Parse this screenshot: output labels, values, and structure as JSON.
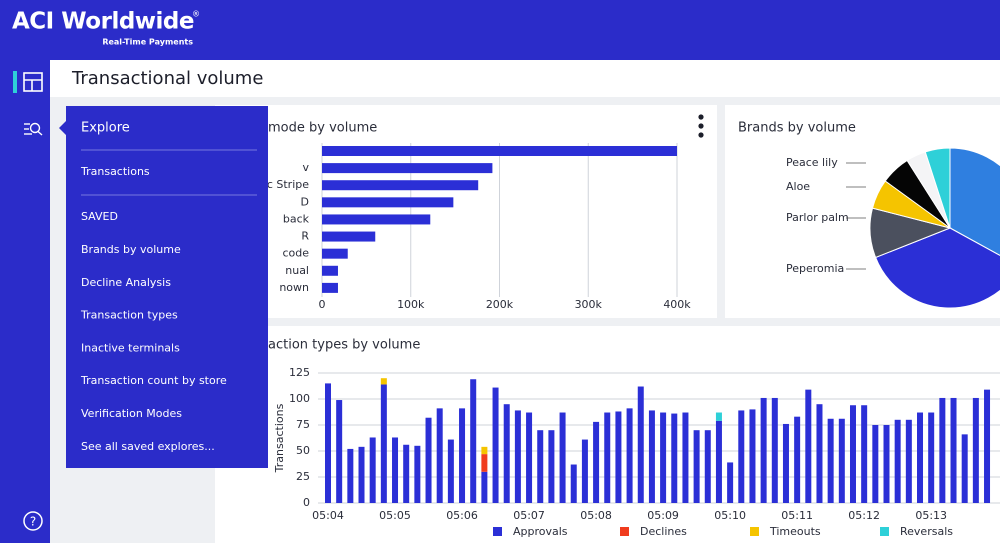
{
  "header": {
    "logo": "ACI Worldwide",
    "logo_mark": "®",
    "tagline": "Real-Time Payments"
  },
  "page_title": "Transactional volume",
  "sidebar": {
    "help": "?"
  },
  "menu": {
    "title": "Explore",
    "items": [
      "Transactions"
    ],
    "section": "SAVED",
    "saved": [
      "Brands by volume",
      "Decline Analysis",
      "Transaction types",
      "Inactive terminals",
      "Transaction count by store",
      "Verification Modes"
    ],
    "see_all": "See all saved explores..."
  },
  "charts": [
    {
      "type": "hbar",
      "title": "mode by volume",
      "categories": [
        null,
        "v",
        "c Stripe",
        "D",
        "back",
        "R",
        "code",
        "nual",
        "nown"
      ],
      "values": [
        400000,
        192000,
        176000,
        148000,
        122000,
        60000,
        29000,
        18000,
        18000
      ],
      "color": "#2b2fd6",
      "xlim": [
        0,
        400000
      ],
      "xticks": [
        0,
        {
          "value": 100000,
          "label": "100k"
        },
        {
          "value": 200000,
          "label": "200k"
        },
        {
          "value": 300000,
          "label": "300k"
        },
        {
          "value": 400000,
          "label": "400k"
        }
      ],
      "grid": true
    },
    {
      "type": "pie",
      "title": "Brands by volume",
      "names": [
        null,
        null,
        "Peperomia",
        "Parlor palm",
        "Aloe",
        "Peace lily",
        null
      ],
      "values": [
        33,
        36,
        10,
        6,
        6,
        4,
        5
      ],
      "colors": [
        "#2f7fe0",
        "#2b2fd6",
        "#4b505e",
        "#f5c400",
        "#050505",
        "#f4f4f6",
        "#2ed0d8"
      ]
    },
    {
      "type": "stacked_bar",
      "title": "action types by volume",
      "y_label": "Transactions",
      "categories": [
        "05:04",
        null,
        null,
        null,
        null,
        null,
        "05:05",
        null,
        null,
        null,
        null,
        null,
        "05:06",
        null,
        null,
        null,
        null,
        null,
        "05:07",
        null,
        null,
        null,
        null,
        null,
        "05:08",
        null,
        null,
        null,
        null,
        null,
        "05:09",
        null,
        null,
        null,
        null,
        null,
        "05:10",
        null,
        null,
        null,
        null,
        null,
        "05:11",
        null,
        null,
        null,
        null,
        null,
        "05:12",
        null,
        null,
        null,
        null,
        null,
        "05:13",
        null,
        null,
        null,
        null,
        null
      ],
      "series": [
        {
          "name": "Approvals",
          "color": "#2b2fd6",
          "values": [
            115,
            99,
            52,
            54,
            63,
            114,
            63,
            56,
            55,
            82,
            91,
            61,
            91,
            119,
            30,
            111,
            95,
            89,
            87,
            70,
            70,
            87,
            37,
            61,
            78,
            87,
            88,
            91,
            112,
            89,
            87,
            86,
            87,
            70,
            70,
            79,
            39,
            89,
            90,
            101,
            101,
            76,
            83,
            109,
            95,
            81,
            81,
            94,
            94,
            75,
            75,
            80,
            80,
            87,
            87,
            101,
            101,
            66,
            101,
            109
          ]
        },
        {
          "name": "Declines",
          "color": "#f03c1e",
          "values": [
            0,
            0,
            0,
            0,
            0,
            0,
            0,
            0,
            0,
            0,
            0,
            0,
            0,
            0,
            17,
            0,
            0,
            0,
            0,
            0,
            0,
            0,
            0,
            0,
            0,
            0,
            0,
            0,
            0,
            0,
            0,
            0,
            0,
            0,
            0,
            0,
            0,
            0,
            0,
            0,
            0,
            0,
            0,
            0,
            0,
            0,
            0,
            0,
            0,
            0,
            0,
            0,
            0,
            0,
            0,
            0,
            0,
            0,
            0,
            0
          ]
        },
        {
          "name": "Timeouts",
          "color": "#f5c400",
          "values": [
            0,
            0,
            0,
            0,
            0,
            6,
            0,
            0,
            0,
            0,
            0,
            0,
            0,
            0,
            7,
            0,
            0,
            0,
            0,
            0,
            0,
            0,
            0,
            0,
            0,
            0,
            0,
            0,
            0,
            0,
            0,
            0,
            0,
            0,
            0,
            0,
            0,
            0,
            0,
            0,
            0,
            0,
            0,
            0,
            0,
            0,
            0,
            0,
            0,
            0,
            0,
            0,
            0,
            0,
            0,
            0,
            0,
            0,
            0,
            0
          ]
        },
        {
          "name": "Reversals",
          "color": "#2ed0d8",
          "values": [
            0,
            0,
            0,
            0,
            0,
            0,
            0,
            0,
            0,
            0,
            0,
            0,
            0,
            0,
            0,
            0,
            0,
            0,
            0,
            0,
            0,
            0,
            0,
            0,
            0,
            0,
            0,
            0,
            0,
            0,
            0,
            0,
            0,
            0,
            0,
            8,
            0,
            0,
            0,
            0,
            0,
            0,
            0,
            0,
            0,
            0,
            0,
            0,
            0,
            0,
            0,
            0,
            0,
            0,
            0,
            0,
            0,
            0,
            0,
            0
          ]
        }
      ],
      "ylim": [
        0,
        125
      ],
      "yticks": [
        0,
        25,
        50,
        75,
        100,
        125
      ],
      "grid": true,
      "legend": "bottom"
    }
  ]
}
